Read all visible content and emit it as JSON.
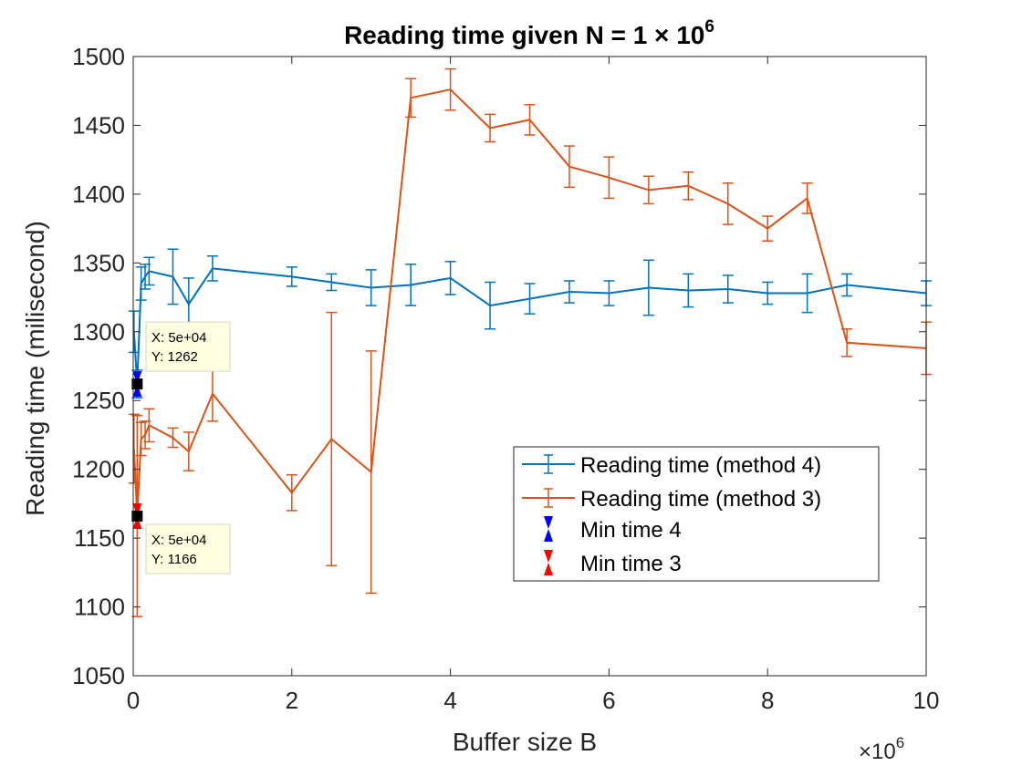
{
  "chart_data": {
    "type": "line",
    "title": "Reading time given N = 1 × 10",
    "title_exponent": "6",
    "xlabel": "Buffer size B",
    "ylabel": "Reading time (milisecond)",
    "x_exponent_label": "×10",
    "x_exponent": "6",
    "xlim": [
      0,
      10
    ],
    "ylim": [
      1050,
      1500
    ],
    "xticks": [
      0,
      2,
      4,
      6,
      8,
      10
    ],
    "xtick_labels": [
      "0",
      "2",
      "4",
      "6",
      "8",
      "10"
    ],
    "yticks": [
      1050,
      1100,
      1150,
      1200,
      1250,
      1300,
      1350,
      1400,
      1450,
      1500
    ],
    "ytick_labels": [
      "1050",
      "1100",
      "1150",
      "1200",
      "1250",
      "1300",
      "1350",
      "1400",
      "1450",
      "1500"
    ],
    "grid": false,
    "legend_position": "lower-right",
    "series": [
      {
        "name": "Reading time (method 4)",
        "color": "#0072BD",
        "x": [
          0.01,
          0.05,
          0.1,
          0.15,
          0.2,
          0.5,
          0.7,
          1.0,
          2.0,
          2.5,
          3.0,
          3.5,
          4.0,
          4.5,
          5.0,
          5.5,
          6.0,
          6.5,
          7.0,
          7.5,
          8.0,
          8.5,
          9.0,
          10.0
        ],
        "y": [
          1300,
          1262,
          1335,
          1340,
          1344,
          1340,
          1320,
          1346,
          1340,
          1336,
          1332,
          1334,
          1339,
          1319,
          1324,
          1329,
          1328,
          1332,
          1330,
          1331,
          1328,
          1328,
          1334,
          1328
        ],
        "err": [
          15,
          10,
          12,
          9,
          10,
          20,
          19,
          9,
          7,
          6,
          13,
          15,
          12,
          17,
          11,
          8,
          9,
          20,
          12,
          10,
          8,
          14,
          8,
          9
        ]
      },
      {
        "name": "Reading time (method 3)",
        "color": "#D95319",
        "x": [
          0.01,
          0.05,
          0.1,
          0.15,
          0.2,
          0.5,
          0.7,
          1.0,
          2.0,
          2.5,
          3.0,
          3.5,
          4.0,
          4.5,
          5.0,
          5.5,
          6.0,
          6.5,
          7.0,
          7.5,
          8.0,
          8.5,
          9.0,
          10.0
        ],
        "y": [
          1215,
          1166,
          1222,
          1225,
          1232,
          1223,
          1213,
          1255,
          1183,
          1222,
          1198,
          1470,
          1476,
          1448,
          1454,
          1420,
          1412,
          1403,
          1406,
          1393,
          1375,
          1397,
          1292,
          1288
        ],
        "err": [
          25,
          73,
          12,
          10,
          12,
          7,
          14,
          20,
          13,
          92,
          88,
          14,
          15,
          10,
          11,
          15,
          15,
          10,
          10,
          15,
          9,
          11,
          10,
          19
        ]
      }
    ],
    "min_markers": [
      {
        "name": "Min time 4",
        "color": "#0000FF",
        "x": 0.05,
        "y": 1262
      },
      {
        "name": "Min time 3",
        "color": "#FF0000",
        "x": 0.05,
        "y": 1166
      }
    ],
    "datatips": [
      {
        "x_text": "X: 5e+04",
        "y_text": "Y: 1262",
        "x": 0.05,
        "y": 1262
      },
      {
        "x_text": "X: 5e+04",
        "y_text": "Y: 1166",
        "x": 0.05,
        "y": 1166
      }
    ]
  }
}
